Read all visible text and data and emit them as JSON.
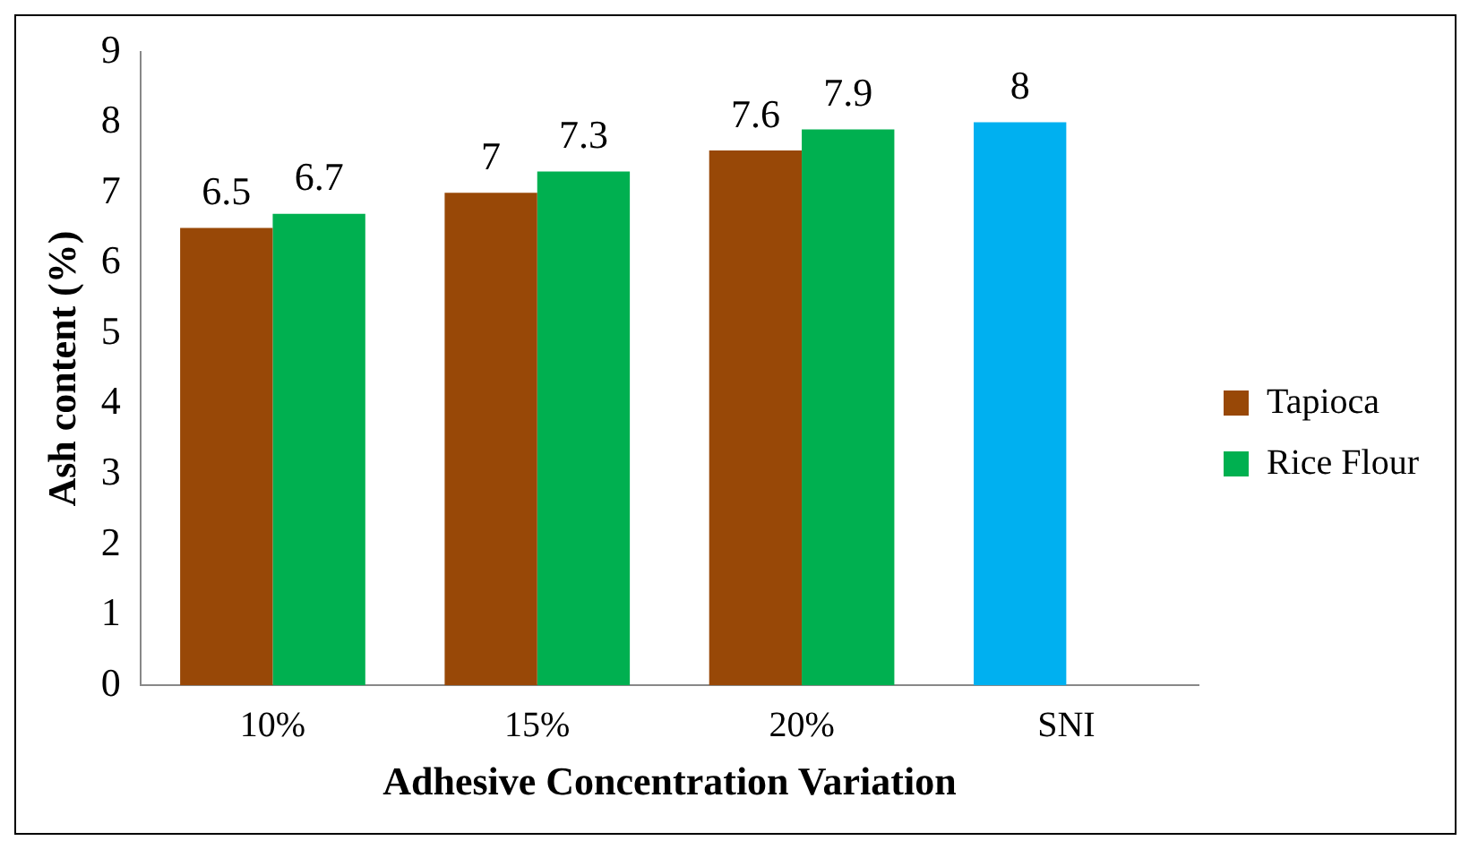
{
  "chart_data": {
    "type": "bar",
    "xlabel": "Adhesive Concentration Variation",
    "ylabel": "Ash content (%)",
    "categories": [
      "10%",
      "15%",
      "20%",
      "SNI"
    ],
    "series": [
      {
        "name": "Tapioca",
        "color": "#984807",
        "colors": [
          "#984807",
          "#984807",
          "#984807",
          "#00b0f0"
        ],
        "values": [
          6.5,
          7,
          7.6,
          8
        ]
      },
      {
        "name": "Rice Flour",
        "color": "#00b050",
        "values": [
          6.7,
          7.3,
          7.9,
          null
        ]
      }
    ],
    "ylim": [
      0,
      9
    ],
    "yticks": [
      0,
      1,
      2,
      3,
      4,
      5,
      6,
      7,
      8,
      9
    ],
    "grid": false,
    "legend": "right",
    "data_labels": true
  }
}
